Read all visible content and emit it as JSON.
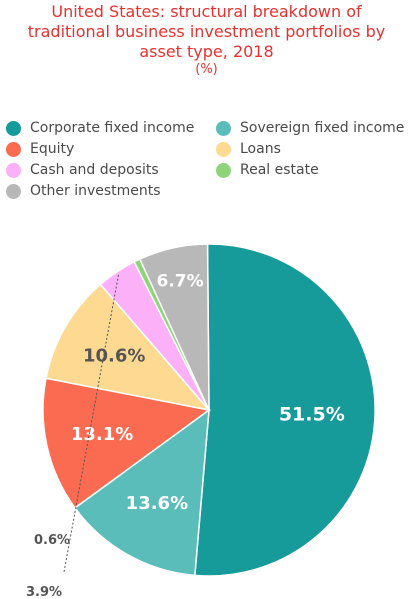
{
  "title": {
    "line1": "United States: structural breakdown of",
    "line2": "traditional business investment portfolios by",
    "line3": "asset type, 2018",
    "unit": "(%)"
  },
  "chart_data": {
    "type": "pie",
    "title": "United States: structural breakdown of traditional business investment portfolios by asset type, 2018",
    "unit": "(%)",
    "legend_position": "top",
    "slices": [
      {
        "name": "Corporate fixed income",
        "value": 51.5,
        "label": "51.5%",
        "color": "#179a9a"
      },
      {
        "name": "Sovereign fixed income",
        "value": 13.6,
        "label": "13.6%",
        "color": "#5bbdb9"
      },
      {
        "name": "Equity",
        "value": 13.1,
        "label": "13.1%",
        "color": "#fb6b52"
      },
      {
        "name": "Loans",
        "value": 10.6,
        "label": "10.6%",
        "color": "#fdd992"
      },
      {
        "name": "Cash and deposits",
        "value": 3.9,
        "label": "3.9%",
        "color": "#fbb0f8"
      },
      {
        "name": "Real estate",
        "value": 0.6,
        "label": "0.6%",
        "color": "#8fd479"
      },
      {
        "name": "Other investments",
        "value": 6.7,
        "label": "6.7%",
        "color": "#b8b8b8"
      }
    ]
  }
}
